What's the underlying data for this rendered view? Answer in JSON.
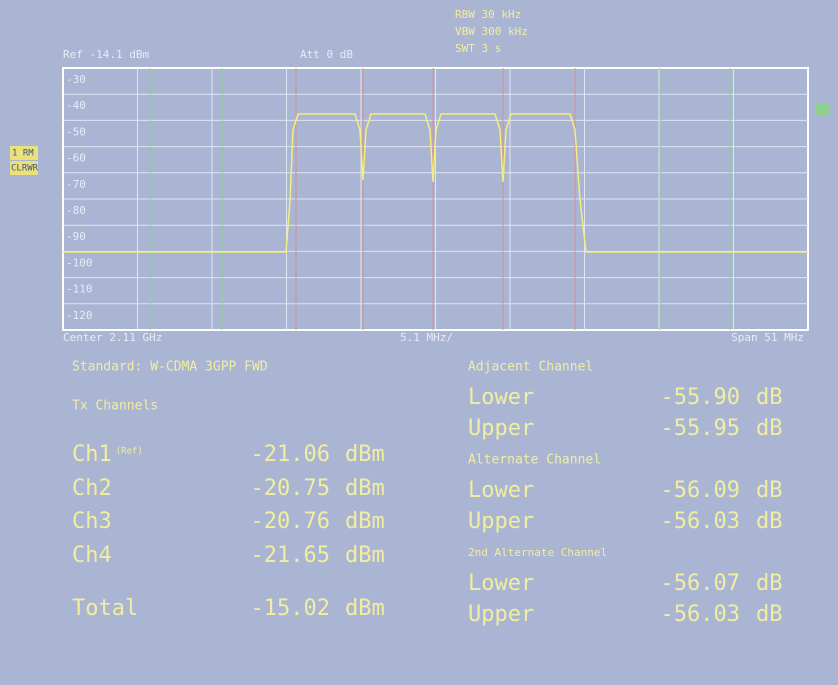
{
  "header": {
    "ref": "Ref -14.1 dBm",
    "att": "Att  0 dB",
    "rbw": "RBW 30 kHz",
    "vbw": "VBW 300 kHz",
    "swt": "SWT 3 s"
  },
  "trace_labels": [
    "1 RM",
    "CLRWR"
  ],
  "y_labels": [
    "-30",
    "-40",
    "-50",
    "-60",
    "-70",
    "-80",
    "-90",
    "-100",
    "-110",
    "-120"
  ],
  "footer": {
    "center": "Center 2.11 GHz",
    "per_div": "5.1 MHz/",
    "span": "Span 51 MHz"
  },
  "measurement": {
    "standard": "Standard: W-CDMA 3GPP FWD",
    "tx_title": "Tx Channels",
    "tx_channels": [
      {
        "name": "Ch1",
        "note": "(Ref)",
        "value": "-21.06",
        "unit": "dBm"
      },
      {
        "name": "Ch2",
        "value": "-20.75",
        "unit": "dBm"
      },
      {
        "name": "Ch3",
        "value": "-20.76",
        "unit": "dBm"
      },
      {
        "name": "Ch4",
        "value": "-21.65",
        "unit": "dBm"
      }
    ],
    "total": {
      "name": "Total",
      "value": "-15.02",
      "unit": "dBm"
    },
    "groups": [
      {
        "title": "Adjacent Channel",
        "rows": [
          {
            "name": "Lower",
            "value": "-55.90",
            "unit": "dB"
          },
          {
            "name": "Upper",
            "value": "-55.95",
            "unit": "dB"
          }
        ]
      },
      {
        "title": "Alternate Channel",
        "rows": [
          {
            "name": "Lower",
            "value": "-56.09",
            "unit": "dB"
          },
          {
            "name": "Upper",
            "value": "-56.03",
            "unit": "dB"
          }
        ]
      },
      {
        "title": "2nd Alternate Channel",
        "rows": [
          {
            "name": "Lower",
            "value": "-56.07",
            "unit": "dB"
          },
          {
            "name": "Upper",
            "value": "-56.03",
            "unit": "dB"
          }
        ]
      }
    ]
  }
}
